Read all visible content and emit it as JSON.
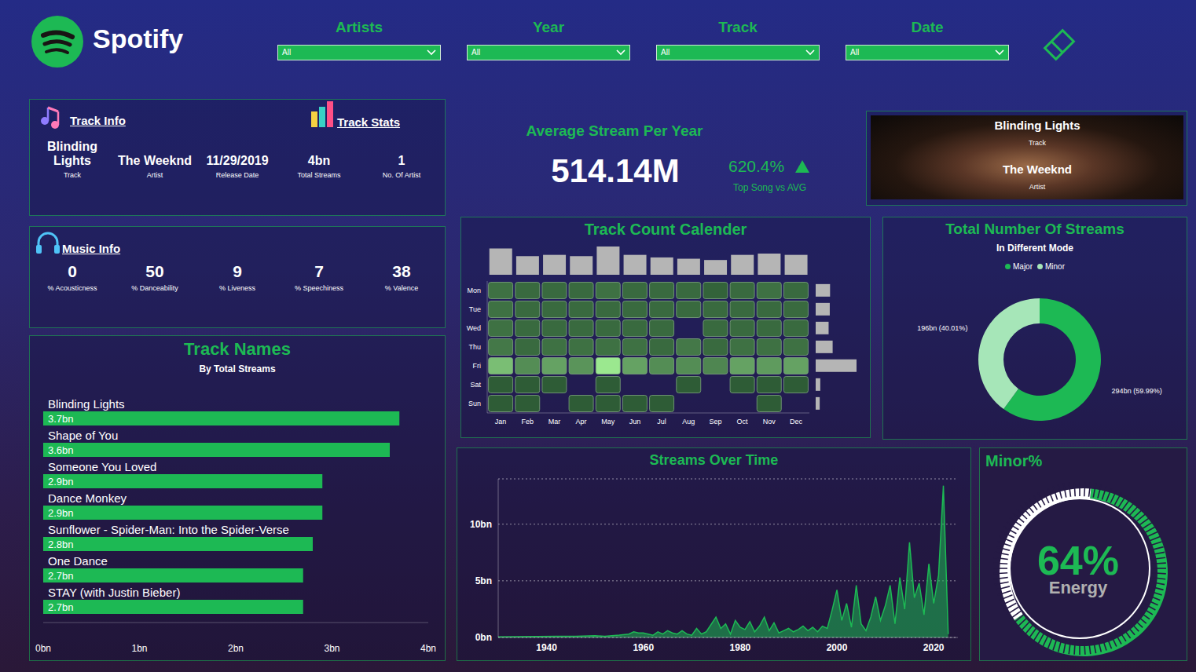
{
  "header": {
    "title": "Spotify"
  },
  "filters": [
    {
      "label": "Artists",
      "value": "All"
    },
    {
      "label": "Year",
      "value": "All"
    },
    {
      "label": "Track",
      "value": "All"
    },
    {
      "label": "Date",
      "value": "All"
    }
  ],
  "track_info": {
    "title": "Track Info",
    "items": [
      {
        "value": "Blinding Lights",
        "label": "Track"
      },
      {
        "value": "The Weeknd",
        "label": "Artist"
      },
      {
        "value": "11/29/2019",
        "label": "Release Date"
      }
    ]
  },
  "track_stats": {
    "title": "Track Stats",
    "items": [
      {
        "value": "4bn",
        "label": "Total Streams"
      },
      {
        "value": "1",
        "label": "No. Of Artist"
      }
    ]
  },
  "music_info": {
    "title": "Music Info",
    "items": [
      {
        "value": 0,
        "label": "% Acousticness"
      },
      {
        "value": 50,
        "label": "% Danceability"
      },
      {
        "value": 9,
        "label": "% Liveness"
      },
      {
        "value": 7,
        "label": "% Speechiness"
      },
      {
        "value": 38,
        "label": "% Valence"
      }
    ]
  },
  "average_stream": {
    "title": "Average Stream Per Year",
    "value": "514.14M",
    "change": "620.4%",
    "change_label": "Top Song vs AVG"
  },
  "top_track_card": {
    "track": "Blinding Lights",
    "track_label": "Track",
    "artist": "The Weeknd",
    "artist_label": "Artist"
  },
  "chart_data": [
    {
      "type": "bar",
      "title": "Track Names",
      "subtitle": "By Total Streams",
      "orientation": "horizontal",
      "categories": [
        "Blinding Lights",
        "Shape of You",
        "Someone You Loved",
        "Dance Monkey",
        "Sunflower - Spider-Man: Into the Spider-Verse",
        "One Dance",
        "STAY (with Justin Bieber)"
      ],
      "values": [
        3.7,
        3.6,
        2.9,
        2.9,
        2.8,
        2.7,
        2.7
      ],
      "value_labels": [
        "3.7bn",
        "3.6bn",
        "2.9bn",
        "2.9bn",
        "2.8bn",
        "2.7bn",
        "2.7bn"
      ],
      "data_labels": true,
      "color": "#1db954",
      "xlim": [
        0,
        4
      ],
      "xticks": [
        {
          "value": 0,
          "label": "0bn"
        },
        {
          "value": 1,
          "label": "1bn"
        },
        {
          "value": 2,
          "label": "2bn"
        },
        {
          "value": 3,
          "label": "3bn"
        },
        {
          "value": 4,
          "label": "4bn"
        }
      ]
    },
    {
      "type": "heatmap",
      "title": "Track Count Calender",
      "categories": [
        "Jan",
        "Feb",
        "Mar",
        "Apr",
        "May",
        "Jun",
        "Jul",
        "Aug",
        "Sep",
        "Oct",
        "Nov",
        "Dec"
      ],
      "row_categories": [
        "Mon",
        "Tue",
        "Wed",
        "Thu",
        "Fri",
        "Sat",
        "Sun"
      ],
      "cells": [
        [
          5,
          4,
          4,
          4,
          5,
          4,
          4,
          4,
          3,
          4,
          5,
          4
        ],
        [
          5,
          4,
          4,
          4,
          4,
          4,
          4,
          4,
          4,
          4,
          4,
          4
        ],
        [
          5,
          4,
          4,
          4,
          4,
          4,
          4,
          null,
          4,
          4,
          4,
          4
        ],
        [
          6,
          4,
          5,
          5,
          5,
          5,
          4,
          6,
          4,
          5,
          5,
          5
        ],
        [
          16,
          9,
          12,
          10,
          22,
          12,
          9,
          9,
          8,
          12,
          11,
          12
        ],
        [
          2,
          2,
          2,
          null,
          2,
          null,
          null,
          2,
          null,
          2,
          2,
          2
        ],
        [
          2,
          2,
          null,
          2,
          2,
          2,
          2,
          null,
          null,
          null,
          2,
          null
        ]
      ]
    },
    {
      "type": "pie",
      "title": "Total Number Of Streams",
      "subtitle": "In Different Mode",
      "categories": [
        "Major",
        "Minor"
      ],
      "values": [
        294,
        196
      ],
      "value_labels": [
        "294bn (59.99%)",
        "196bn (40.01%)"
      ],
      "colors": [
        "#1db954",
        "#a6e6b8"
      ],
      "data_labels": true,
      "legend": "top"
    },
    {
      "type": "area",
      "title": "Streams Over Time",
      "x": [
        1930,
        1942,
        1946,
        1950,
        1952,
        1955,
        1957,
        1958,
        1959,
        1960,
        1962,
        1963,
        1964,
        1965,
        1966,
        1967,
        1968,
        1969,
        1970,
        1971,
        1972,
        1973,
        1975,
        1976,
        1977,
        1978,
        1979,
        1980,
        1981,
        1982,
        1983,
        1984,
        1985,
        1986,
        1987,
        1988,
        1989,
        1990,
        1991,
        1992,
        1993,
        1994,
        1995,
        1996,
        1997,
        1998,
        1999,
        2000,
        2001,
        2002,
        2003,
        2004,
        2005,
        2006,
        2007,
        2008,
        2009,
        2010,
        2011,
        2012,
        2013,
        2014,
        2015,
        2016,
        2017,
        2018,
        2019,
        2020,
        2021,
        2022,
        2023
      ],
      "values": [
        0.05,
        0.1,
        0.1,
        0.15,
        0.1,
        0.2,
        0.3,
        0.5,
        0.4,
        0.4,
        0.2,
        0.5,
        0.3,
        0.6,
        0.4,
        0.3,
        0.6,
        0.3,
        0.2,
        0.8,
        0.3,
        0.5,
        1.8,
        0.8,
        1.2,
        0.3,
        1.5,
        0.9,
        0.7,
        1.4,
        0.5,
        1.0,
        1.8,
        0.6,
        1.3,
        0.4,
        0.6,
        0.8,
        0.5,
        0.7,
        1.0,
        0.6,
        0.9,
        0.5,
        1.0,
        0.8,
        2.4,
        4.2,
        1.5,
        3.0,
        0.9,
        4.6,
        1.2,
        0.6,
        1.8,
        3.6,
        1.5,
        2.8,
        4.6,
        1.2,
        5.3,
        2.5,
        8.4,
        3.5,
        4.8,
        2.0,
        6.5,
        3.0,
        5.5,
        13.4,
        0.3
      ],
      "color": "#1db954",
      "xlim": [
        1930,
        2025
      ],
      "xticks": [
        1940,
        1960,
        1980,
        2000,
        2020
      ],
      "ylim": [
        0,
        14
      ],
      "yticks": [
        {
          "value": 0,
          "label": "0bn"
        },
        {
          "value": 5,
          "label": "5bn"
        },
        {
          "value": 10,
          "label": "10bn"
        }
      ],
      "grid": true
    },
    {
      "type": "gauge",
      "title": "Minor%",
      "value": 64,
      "value_label": "64%",
      "label": "Energy",
      "ylim": [
        0,
        100
      ],
      "color": "#1db954"
    }
  ]
}
